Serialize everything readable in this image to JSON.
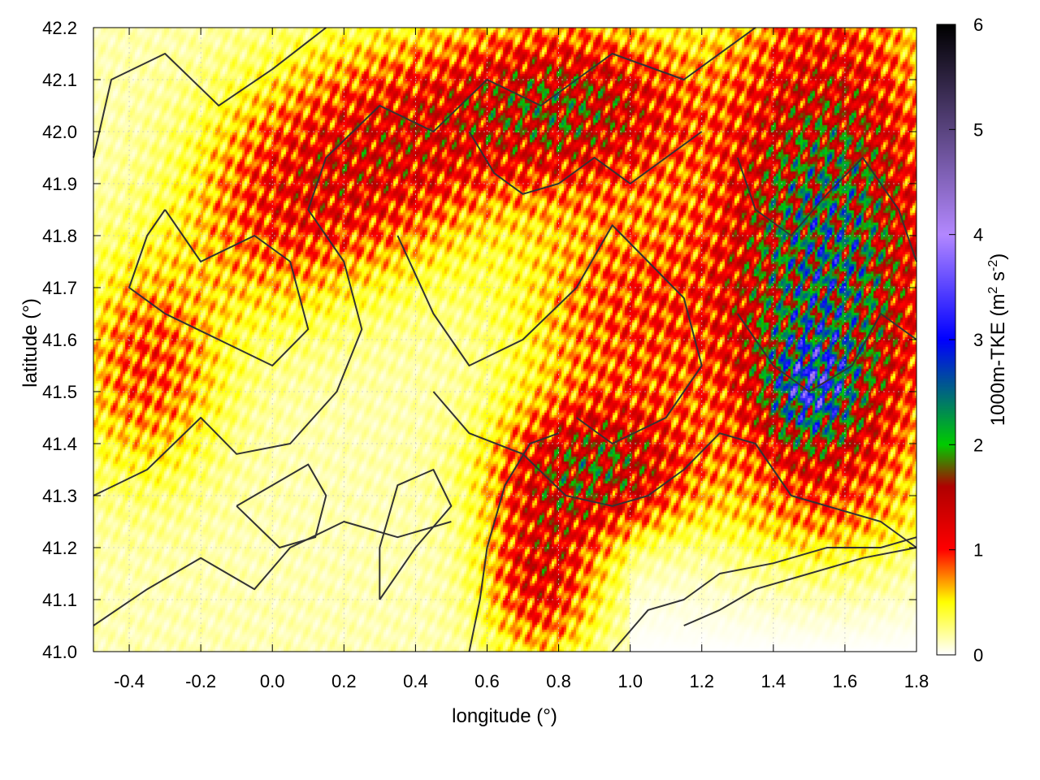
{
  "chart_data": {
    "type": "heatmap",
    "xlabel": "longitude (°)",
    "ylabel": "latitude (°)",
    "xlim": [
      -0.5,
      1.8
    ],
    "ylim": [
      41.0,
      42.2
    ],
    "x_ticks": [
      -0.4,
      -0.2,
      0.0,
      0.2,
      0.4,
      0.6,
      0.8,
      1.0,
      1.2,
      1.4,
      1.6,
      1.8
    ],
    "y_ticks": [
      41.0,
      41.1,
      41.2,
      41.3,
      41.4,
      41.5,
      41.6,
      41.7,
      41.8,
      41.9,
      42.0,
      42.1,
      42.2
    ],
    "x_tick_labels": [
      "-0.4",
      "-0.2",
      "0.0",
      "0.2",
      "0.4",
      "0.6",
      "0.8",
      "1.0",
      "1.2",
      "1.4",
      "1.6",
      "1.8"
    ],
    "y_tick_labels": [
      "41.0",
      "41.1",
      "41.2",
      "41.3",
      "41.4",
      "41.5",
      "41.6",
      "41.7",
      "41.8",
      "41.9",
      "42.0",
      "42.1",
      "42.2"
    ],
    "grid": true,
    "colorbar": {
      "label": "1000m-TKE (m² s⁻²)",
      "label_main": "1000m-TKE (m",
      "label_sup1": "2",
      "label_mid": " s",
      "label_sup2": "-2",
      "label_end": ")",
      "range": [
        0,
        6
      ],
      "ticks": [
        0,
        1,
        2,
        3,
        4,
        5,
        6
      ],
      "tick_labels": [
        "0",
        "1",
        "2",
        "3",
        "4",
        "5",
        "6"
      ],
      "colors": [
        "#ffffff",
        "#ffff00",
        "#ff0000",
        "#b00000",
        "#00cc00",
        "#0000ff",
        "#b388ff",
        "#000000"
      ],
      "placement": "right"
    },
    "contour_color": "#333333",
    "blobs": [
      {
        "lon": 1.55,
        "lat": 41.75,
        "rx": 0.28,
        "ry": 0.45,
        "amp": 2.0
      },
      {
        "lon": 1.5,
        "lat": 41.5,
        "rx": 0.12,
        "ry": 0.1,
        "amp": 1.2
      },
      {
        "lon": 0.8,
        "lat": 42.05,
        "rx": 0.35,
        "ry": 0.15,
        "amp": 1.4
      },
      {
        "lon": 0.9,
        "lat": 41.35,
        "rx": 0.25,
        "ry": 0.12,
        "amp": 1.3
      },
      {
        "lon": 0.3,
        "lat": 41.95,
        "rx": 0.3,
        "ry": 0.2,
        "amp": 0.9
      },
      {
        "lon": 0.75,
        "lat": 41.15,
        "rx": 0.15,
        "ry": 0.15,
        "amp": 1.0
      },
      {
        "lon": 0.0,
        "lat": 41.85,
        "rx": 0.25,
        "ry": 0.2,
        "amp": 0.6
      },
      {
        "lon": -0.35,
        "lat": 41.55,
        "rx": 0.2,
        "ry": 0.2,
        "amp": 0.7
      },
      {
        "lon": 1.0,
        "lat": 41.65,
        "rx": 0.3,
        "ry": 0.25,
        "amp": 0.7
      }
    ]
  }
}
